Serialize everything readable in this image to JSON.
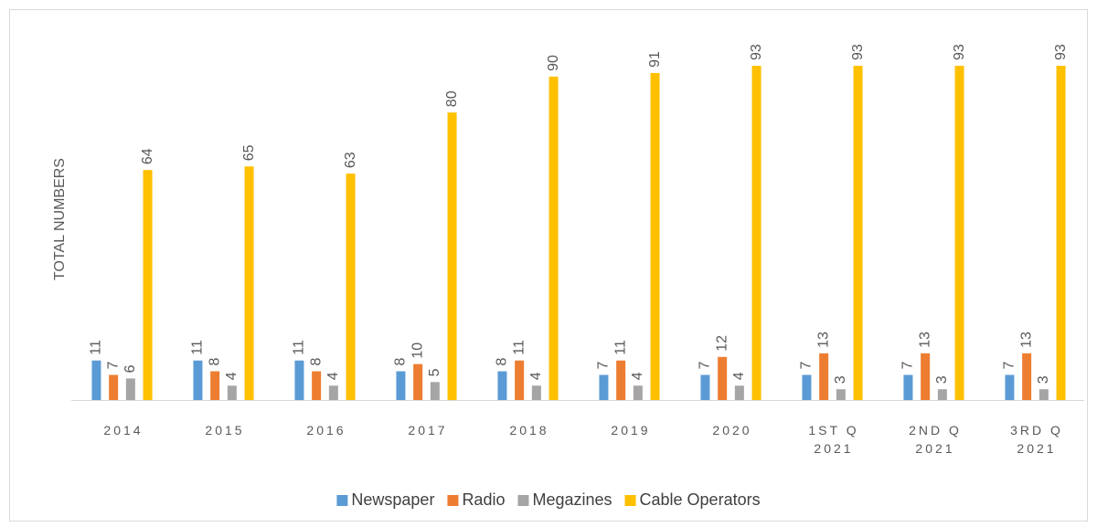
{
  "chart_data": {
    "type": "bar",
    "y_label": "TOTAL NUMBERS",
    "categories": [
      "2014",
      "2015",
      "2016",
      "2017",
      "2018",
      "2019",
      "2020",
      "1ST Q 2021",
      "2ND Q 2021",
      "3RD Q 2021"
    ],
    "series": [
      {
        "name": "Newspaper",
        "color": "#5b9bd5",
        "values": [
          11,
          11,
          11,
          8,
          8,
          7,
          7,
          7,
          7,
          7
        ]
      },
      {
        "name": "Radio",
        "color": "#ed7d31",
        "values": [
          7,
          8,
          8,
          10,
          11,
          11,
          12,
          13,
          13,
          13
        ]
      },
      {
        "name": "Megazines",
        "color": "#a5a5a5",
        "values": [
          6,
          4,
          4,
          5,
          4,
          4,
          4,
          3,
          3,
          3
        ]
      },
      {
        "name": "Cable Operators",
        "color": "#ffc000",
        "values": [
          64,
          65,
          63,
          80,
          90,
          91,
          93,
          93,
          93,
          93
        ]
      }
    ],
    "ylim": [
      0,
      100
    ],
    "legend": "bottom"
  }
}
